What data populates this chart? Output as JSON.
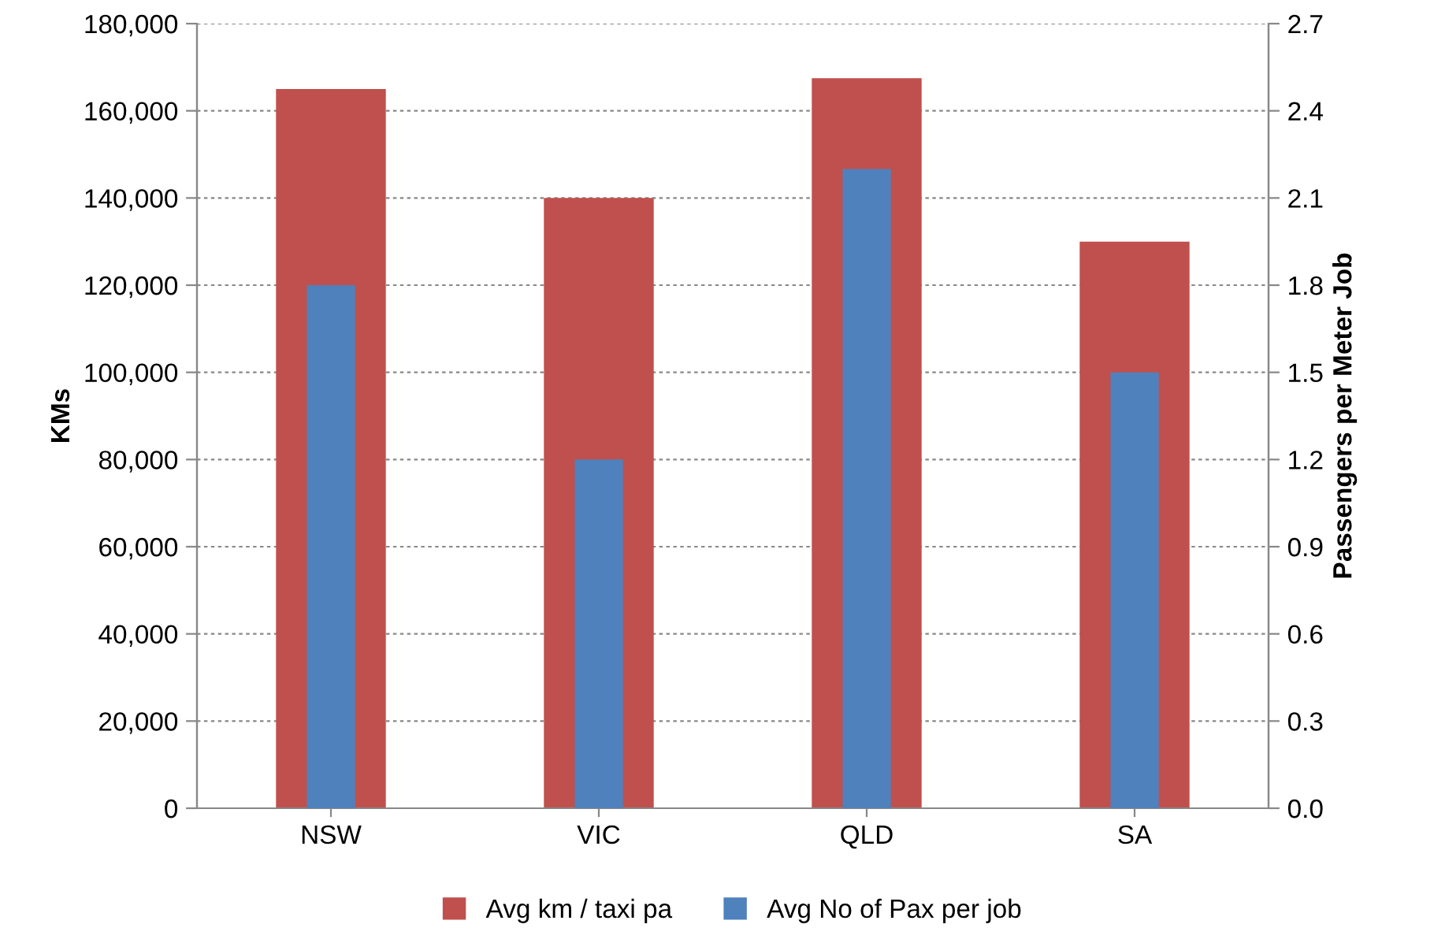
{
  "chart_data": {
    "type": "bar",
    "categories": [
      "NSW",
      "VIC",
      "QLD",
      "SA"
    ],
    "series": [
      {
        "name": "Avg km / taxi pa",
        "color": "#c0504d",
        "values": [
          165000,
          140000,
          167500,
          130000
        ]
      },
      {
        "name": "Avg No of Pax per job",
        "color": "#4f81bd",
        "values": [
          1.8,
          1.2,
          2.2,
          1.5
        ],
        "axis": "y2"
      }
    ],
    "ylabel": "KMs",
    "y2label": "Passengers per Meter Job",
    "ylim": [
      0,
      180000
    ],
    "yticks": [
      {
        "value": 0,
        "label": "0"
      },
      {
        "value": 20000,
        "label": "20,000"
      },
      {
        "value": 40000,
        "label": "40,000"
      },
      {
        "value": 60000,
        "label": "60,000"
      },
      {
        "value": 80000,
        "label": "80,000"
      },
      {
        "value": 100000,
        "label": "100,000"
      },
      {
        "value": 120000,
        "label": "120,000"
      },
      {
        "value": 140000,
        "label": "140,000"
      },
      {
        "value": 160000,
        "label": "160,000"
      },
      {
        "value": 180000,
        "label": "180,000"
      }
    ],
    "y2lim": [
      0,
      2.7
    ],
    "y2ticks": [
      {
        "value": 0,
        "label": "0.0"
      },
      {
        "value": 0.3,
        "label": "0.3"
      },
      {
        "value": 0.6,
        "label": "0.6"
      },
      {
        "value": 0.9,
        "label": "0.9"
      },
      {
        "value": 1.2,
        "label": "1.2"
      },
      {
        "value": 1.5,
        "label": "1.5"
      },
      {
        "value": 1.8,
        "label": "1.8"
      },
      {
        "value": 2.1,
        "label": "2.1"
      },
      {
        "value": 2.4,
        "label": "2.4"
      },
      {
        "value": 2.7,
        "label": "2.7"
      }
    ],
    "grid": "y",
    "legend": "bottom"
  }
}
